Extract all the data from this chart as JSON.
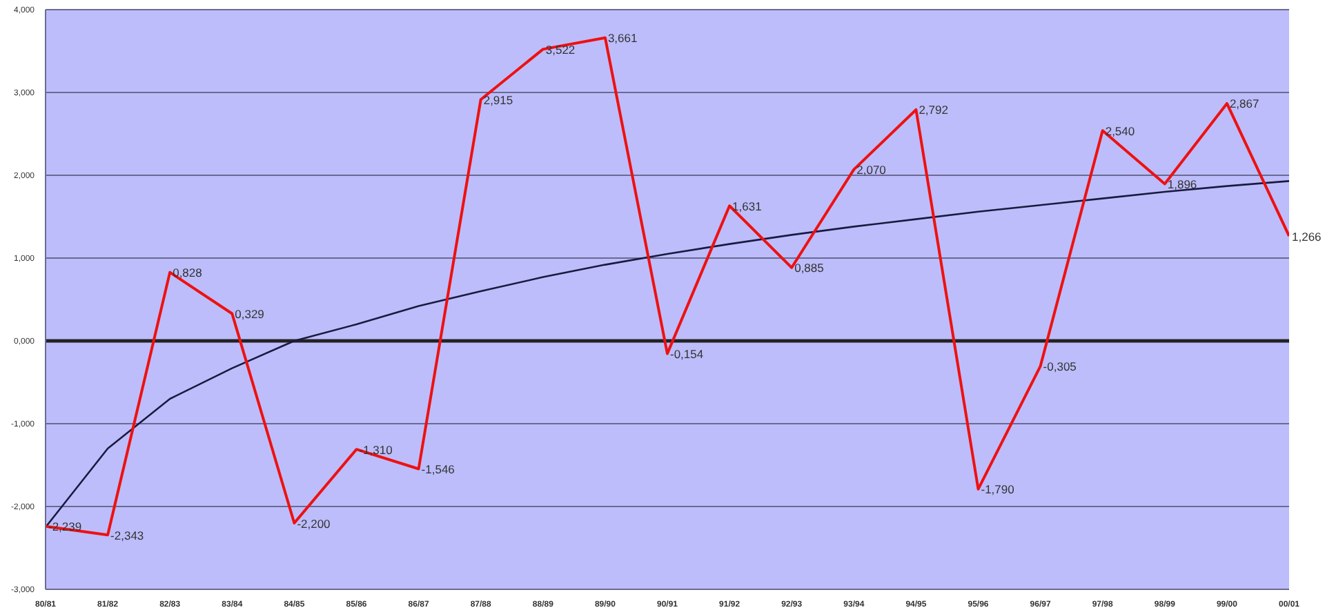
{
  "chart_data": {
    "type": "line",
    "categories": [
      "80/81",
      "81/82",
      "82/83",
      "83/84",
      "84/85",
      "85/86",
      "86/87",
      "87/88",
      "88/89",
      "89/90",
      "90/91",
      "91/92",
      "92/93",
      "93/94",
      "94/95",
      "95/96",
      "96/97",
      "97/98",
      "98/99",
      "99/00",
      "00/01"
    ],
    "ylim": [
      -3,
      4
    ],
    "yticks": [
      {
        "value": -3,
        "label": "-3,000"
      },
      {
        "value": -2,
        "label": "-2,000"
      },
      {
        "value": -1,
        "label": "-1,000"
      },
      {
        "value": 0,
        "label": "0,000"
      },
      {
        "value": 1,
        "label": "1,000"
      },
      {
        "value": 2,
        "label": "2,000"
      },
      {
        "value": 3,
        "label": "3,000"
      },
      {
        "value": 4,
        "label": "4,000"
      }
    ],
    "grid": "y",
    "marker": "none",
    "series": [
      {
        "color": "#ee1111",
        "values": [
          -2.239,
          -2.343,
          0.828,
          0.329,
          -2.2,
          -1.31,
          -1.546,
          2.915,
          3.522,
          3.661,
          -0.154,
          1.631,
          0.885,
          2.07,
          2.792,
          -1.79,
          -0.305,
          2.54,
          1.896,
          2.867,
          1.266
        ],
        "value_labels": [
          "-2,239",
          "-2,343",
          "0,828",
          "0,329",
          "-2,200",
          "-1,310",
          "-1,546",
          "2,915",
          "3,522",
          "3,661",
          "-0,154",
          "1,631",
          "0,885",
          "2,070",
          "2,792",
          "-1,790",
          "-0,305",
          "2,540",
          "1,896",
          "2,867",
          "1,266"
        ]
      },
      {
        "color": "#1a1a40",
        "values": [
          -2.25,
          -1.3,
          -0.7,
          -0.33,
          0.0,
          0.2,
          0.42,
          0.6,
          0.77,
          0.92,
          1.05,
          1.17,
          1.28,
          1.38,
          1.47,
          1.56,
          1.64,
          1.72,
          1.8,
          1.87,
          1.93
        ]
      }
    ],
    "ref_lines": [
      {
        "axis": "y",
        "value": 0,
        "color": "#222222"
      }
    ]
  }
}
